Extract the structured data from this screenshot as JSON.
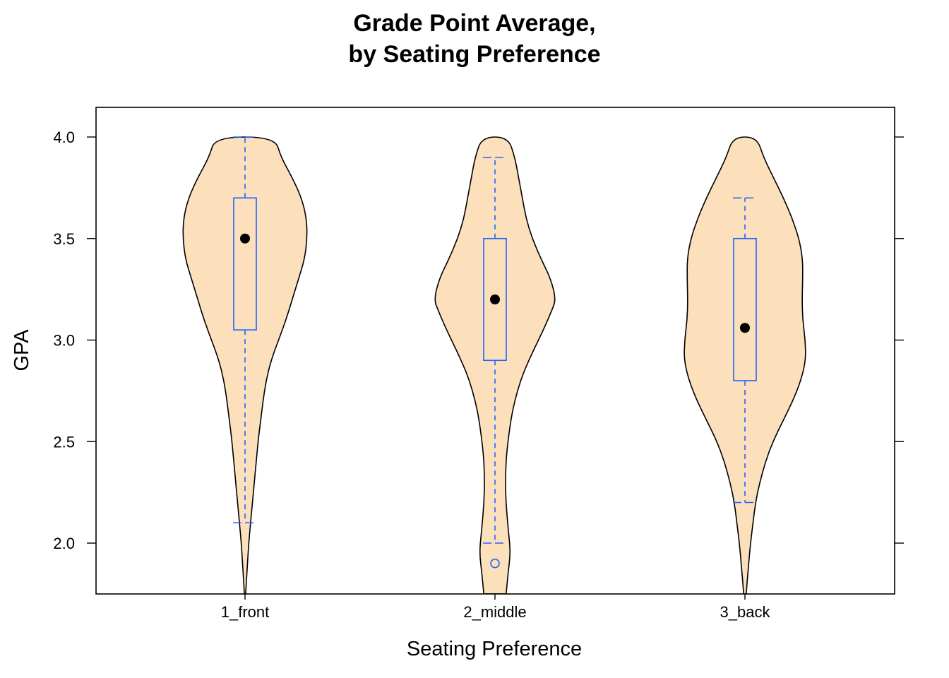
{
  "chart_data": {
    "type": "violin",
    "title": [
      "Grade Point Average,",
      "by Seating Preference"
    ],
    "xlabel": "Seating Preference",
    "ylabel": "GPA",
    "ylim": [
      1.75,
      4.15
    ],
    "yticks": [
      "2.0",
      "2.5",
      "3.0",
      "3.5",
      "4.0"
    ],
    "categories": [
      "1_front",
      "2_middle",
      "3_back"
    ],
    "colors": {
      "violin_fill": "#FCDFBB",
      "violin_stroke": "#000000",
      "box": "#1F65FF",
      "median_dot": "#000000"
    },
    "grid": false,
    "series": [
      {
        "category": "1_front",
        "box": {
          "whisker_low": 2.1,
          "q1": 3.05,
          "median": 3.5,
          "q3": 3.7,
          "whisker_high": 4.0
        },
        "outliers": [],
        "density": [
          [
            1.75,
            0.01
          ],
          [
            1.9,
            0.04
          ],
          [
            2.0,
            0.06
          ],
          [
            2.1,
            0.09
          ],
          [
            2.2,
            0.12
          ],
          [
            2.3,
            0.15
          ],
          [
            2.4,
            0.18
          ],
          [
            2.5,
            0.21
          ],
          [
            2.6,
            0.25
          ],
          [
            2.7,
            0.29
          ],
          [
            2.8,
            0.34
          ],
          [
            2.9,
            0.42
          ],
          [
            3.0,
            0.54
          ],
          [
            3.1,
            0.66
          ],
          [
            3.2,
            0.76
          ],
          [
            3.3,
            0.86
          ],
          [
            3.4,
            0.96
          ],
          [
            3.5,
            1.0
          ],
          [
            3.6,
            0.99
          ],
          [
            3.7,
            0.91
          ],
          [
            3.8,
            0.76
          ],
          [
            3.9,
            0.58
          ],
          [
            4.0,
            0.48
          ]
        ]
      },
      {
        "category": "2_middle",
        "box": {
          "whisker_low": 2.0,
          "q1": 2.9,
          "median": 3.2,
          "q3": 3.5,
          "whisker_high": 3.9
        },
        "outliers": [
          1.9
        ],
        "density": [
          [
            1.75,
            0.18
          ],
          [
            1.85,
            0.21
          ],
          [
            1.95,
            0.25
          ],
          [
            2.05,
            0.22
          ],
          [
            2.15,
            0.19
          ],
          [
            2.25,
            0.17
          ],
          [
            2.35,
            0.17
          ],
          [
            2.45,
            0.19
          ],
          [
            2.55,
            0.23
          ],
          [
            2.65,
            0.28
          ],
          [
            2.75,
            0.36
          ],
          [
            2.85,
            0.47
          ],
          [
            2.95,
            0.62
          ],
          [
            3.05,
            0.78
          ],
          [
            3.15,
            0.92
          ],
          [
            3.2,
            0.98
          ],
          [
            3.3,
            0.9
          ],
          [
            3.4,
            0.74
          ],
          [
            3.5,
            0.6
          ],
          [
            3.6,
            0.5
          ],
          [
            3.7,
            0.44
          ],
          [
            3.8,
            0.38
          ],
          [
            3.9,
            0.32
          ],
          [
            4.0,
            0.21
          ]
        ]
      },
      {
        "category": "3_back",
        "box": {
          "whisker_low": 2.2,
          "q1": 2.8,
          "median": 3.06,
          "q3": 3.5,
          "whisker_high": 3.7
        },
        "outliers": [],
        "density": [
          [
            1.75,
            0.02
          ],
          [
            1.9,
            0.06
          ],
          [
            2.0,
            0.09
          ],
          [
            2.1,
            0.13
          ],
          [
            2.2,
            0.17
          ],
          [
            2.3,
            0.24
          ],
          [
            2.4,
            0.33
          ],
          [
            2.5,
            0.45
          ],
          [
            2.6,
            0.61
          ],
          [
            2.7,
            0.77
          ],
          [
            2.8,
            0.9
          ],
          [
            2.9,
            0.98
          ],
          [
            3.0,
            0.97
          ],
          [
            3.1,
            0.93
          ],
          [
            3.2,
            0.92
          ],
          [
            3.3,
            0.93
          ],
          [
            3.4,
            0.93
          ],
          [
            3.5,
            0.87
          ],
          [
            3.6,
            0.76
          ],
          [
            3.7,
            0.62
          ],
          [
            3.8,
            0.46
          ],
          [
            3.9,
            0.3
          ],
          [
            4.0,
            0.19
          ]
        ]
      }
    ]
  }
}
